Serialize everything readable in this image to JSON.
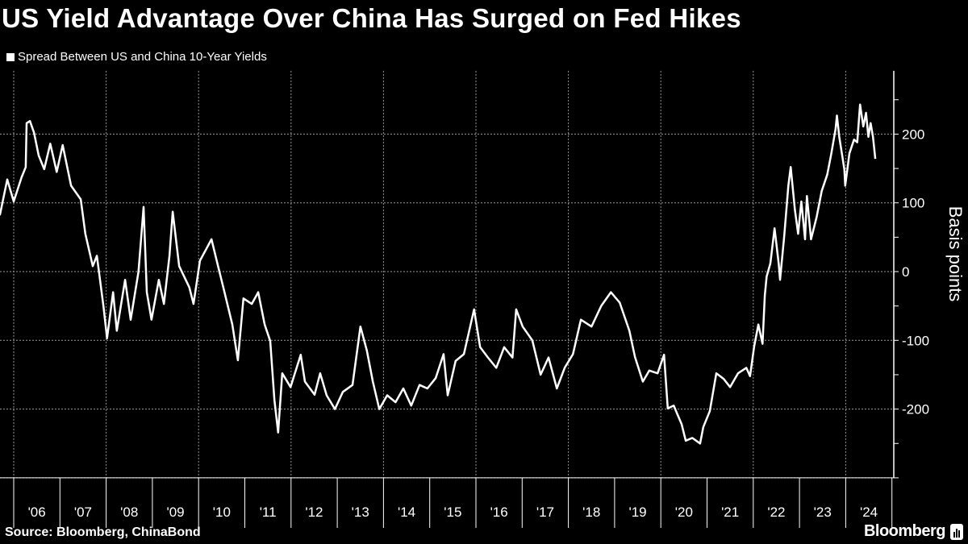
{
  "chart_data": {
    "type": "line",
    "title": "US Yield Advantage Over China Has Surged on Fed Hikes",
    "legend": "Spread Between US and China 10-Year Yields",
    "ylabel": "Basis points",
    "ylim": [
      -300,
      292
    ],
    "yticks": [
      200,
      100,
      0,
      -100,
      -200
    ],
    "yticklabels": [
      "200",
      "100",
      "0",
      "-100",
      "-200"
    ],
    "xlim": [
      2005.7,
      2025
    ],
    "xticklabels": [
      "'06",
      "'07",
      "'08",
      "'09",
      "'10",
      "'11",
      "'12",
      "'13",
      "'14",
      "'15",
      "'16",
      "'17",
      "'18",
      "'19",
      "'20",
      "'21",
      "'22",
      "'23",
      "'24"
    ],
    "grid": true,
    "line_color": "#ffffff",
    "background": "#000000",
    "series": [
      {
        "name": "Spread Between US and China 10-Year Yields",
        "points": [
          [
            2005.7,
            82
          ],
          [
            2005.86,
            134
          ],
          [
            2006.0,
            102
          ],
          [
            2006.17,
            137
          ],
          [
            2006.26,
            152
          ],
          [
            2006.28,
            216
          ],
          [
            2006.35,
            219
          ],
          [
            2006.44,
            202
          ],
          [
            2006.54,
            169
          ],
          [
            2006.66,
            149
          ],
          [
            2006.79,
            186
          ],
          [
            2006.93,
            145
          ],
          [
            2007.06,
            184
          ],
          [
            2007.24,
            125
          ],
          [
            2007.45,
            105
          ],
          [
            2007.55,
            55
          ],
          [
            2007.71,
            8
          ],
          [
            2007.8,
            23
          ],
          [
            2007.94,
            -50
          ],
          [
            2008.02,
            -97
          ],
          [
            2008.15,
            -30
          ],
          [
            2008.23,
            -86
          ],
          [
            2008.41,
            -12
          ],
          [
            2008.53,
            -70
          ],
          [
            2008.7,
            0
          ],
          [
            2008.81,
            94
          ],
          [
            2008.88,
            -30
          ],
          [
            2008.98,
            -70
          ],
          [
            2009.14,
            -12
          ],
          [
            2009.25,
            -47
          ],
          [
            2009.37,
            23
          ],
          [
            2009.44,
            87
          ],
          [
            2009.58,
            8
          ],
          [
            2009.8,
            -23
          ],
          [
            2009.89,
            -47
          ],
          [
            2010.03,
            16
          ],
          [
            2010.28,
            47
          ],
          [
            2010.42,
            8
          ],
          [
            2010.56,
            -30
          ],
          [
            2010.73,
            -77
          ],
          [
            2010.85,
            -129
          ],
          [
            2010.97,
            -39
          ],
          [
            2011.15,
            -47
          ],
          [
            2011.29,
            -30
          ],
          [
            2011.43,
            -77
          ],
          [
            2011.55,
            -101
          ],
          [
            2011.64,
            -187
          ],
          [
            2011.72,
            -234
          ],
          [
            2011.81,
            -148
          ],
          [
            2011.99,
            -168
          ],
          [
            2012.21,
            -121
          ],
          [
            2012.3,
            -160
          ],
          [
            2012.51,
            -179
          ],
          [
            2012.63,
            -148
          ],
          [
            2012.77,
            -180
          ],
          [
            2012.95,
            -200
          ],
          [
            2013.12,
            -175
          ],
          [
            2013.33,
            -165
          ],
          [
            2013.5,
            -80
          ],
          [
            2013.64,
            -115
          ],
          [
            2013.77,
            -160
          ],
          [
            2013.91,
            -200
          ],
          [
            2014.08,
            -180
          ],
          [
            2014.26,
            -190
          ],
          [
            2014.43,
            -170
          ],
          [
            2014.6,
            -195
          ],
          [
            2014.78,
            -165
          ],
          [
            2014.95,
            -170
          ],
          [
            2015.13,
            -155
          ],
          [
            2015.3,
            -120
          ],
          [
            2015.39,
            -180
          ],
          [
            2015.56,
            -130
          ],
          [
            2015.74,
            -120
          ],
          [
            2015.96,
            -55
          ],
          [
            2016.09,
            -110
          ],
          [
            2016.26,
            -125
          ],
          [
            2016.44,
            -140
          ],
          [
            2016.61,
            -110
          ],
          [
            2016.79,
            -125
          ],
          [
            2016.87,
            -55
          ],
          [
            2017.01,
            -80
          ],
          [
            2017.22,
            -100
          ],
          [
            2017.4,
            -150
          ],
          [
            2017.57,
            -125
          ],
          [
            2017.75,
            -170
          ],
          [
            2017.92,
            -140
          ],
          [
            2018.1,
            -120
          ],
          [
            2018.27,
            -70
          ],
          [
            2018.5,
            -80
          ],
          [
            2018.71,
            -50
          ],
          [
            2018.92,
            -30
          ],
          [
            2019.11,
            -45
          ],
          [
            2019.32,
            -86
          ],
          [
            2019.44,
            -124
          ],
          [
            2019.61,
            -160
          ],
          [
            2019.75,
            -144
          ],
          [
            2019.93,
            -148
          ],
          [
            2020.07,
            -121
          ],
          [
            2020.15,
            -199
          ],
          [
            2020.28,
            -195
          ],
          [
            2020.45,
            -222
          ],
          [
            2020.54,
            -246
          ],
          [
            2020.68,
            -242
          ],
          [
            2020.85,
            -250
          ],
          [
            2020.92,
            -226
          ],
          [
            2021.06,
            -203
          ],
          [
            2021.2,
            -148
          ],
          [
            2021.36,
            -156
          ],
          [
            2021.5,
            -168
          ],
          [
            2021.67,
            -148
          ],
          [
            2021.85,
            -140
          ],
          [
            2021.93,
            -152
          ],
          [
            2022.02,
            -109
          ],
          [
            2022.11,
            -77
          ],
          [
            2022.2,
            -105
          ],
          [
            2022.25,
            -35
          ],
          [
            2022.29,
            -7
          ],
          [
            2022.37,
            12
          ],
          [
            2022.46,
            63
          ],
          [
            2022.55,
            12
          ],
          [
            2022.58,
            -12
          ],
          [
            2022.67,
            52
          ],
          [
            2022.76,
            125
          ],
          [
            2022.81,
            152
          ],
          [
            2022.9,
            90
          ],
          [
            2022.97,
            55
          ],
          [
            2023.04,
            102
          ],
          [
            2023.12,
            47
          ],
          [
            2023.16,
            110
          ],
          [
            2023.25,
            47
          ],
          [
            2023.37,
            79
          ],
          [
            2023.48,
            117
          ],
          [
            2023.6,
            141
          ],
          [
            2023.69,
            172
          ],
          [
            2023.78,
            207
          ],
          [
            2023.81,
            227
          ],
          [
            2023.86,
            196
          ],
          [
            2023.97,
            149
          ],
          [
            2023.99,
            125
          ],
          [
            2024.08,
            172
          ],
          [
            2024.18,
            192
          ],
          [
            2024.25,
            188
          ],
          [
            2024.31,
            243
          ],
          [
            2024.38,
            211
          ],
          [
            2024.44,
            231
          ],
          [
            2024.49,
            196
          ],
          [
            2024.54,
            216
          ],
          [
            2024.59,
            196
          ],
          [
            2024.64,
            164
          ]
        ]
      }
    ]
  },
  "footer": {
    "source": "Source: Bloomberg, ChinaBond",
    "brand": "Bloomberg"
  }
}
